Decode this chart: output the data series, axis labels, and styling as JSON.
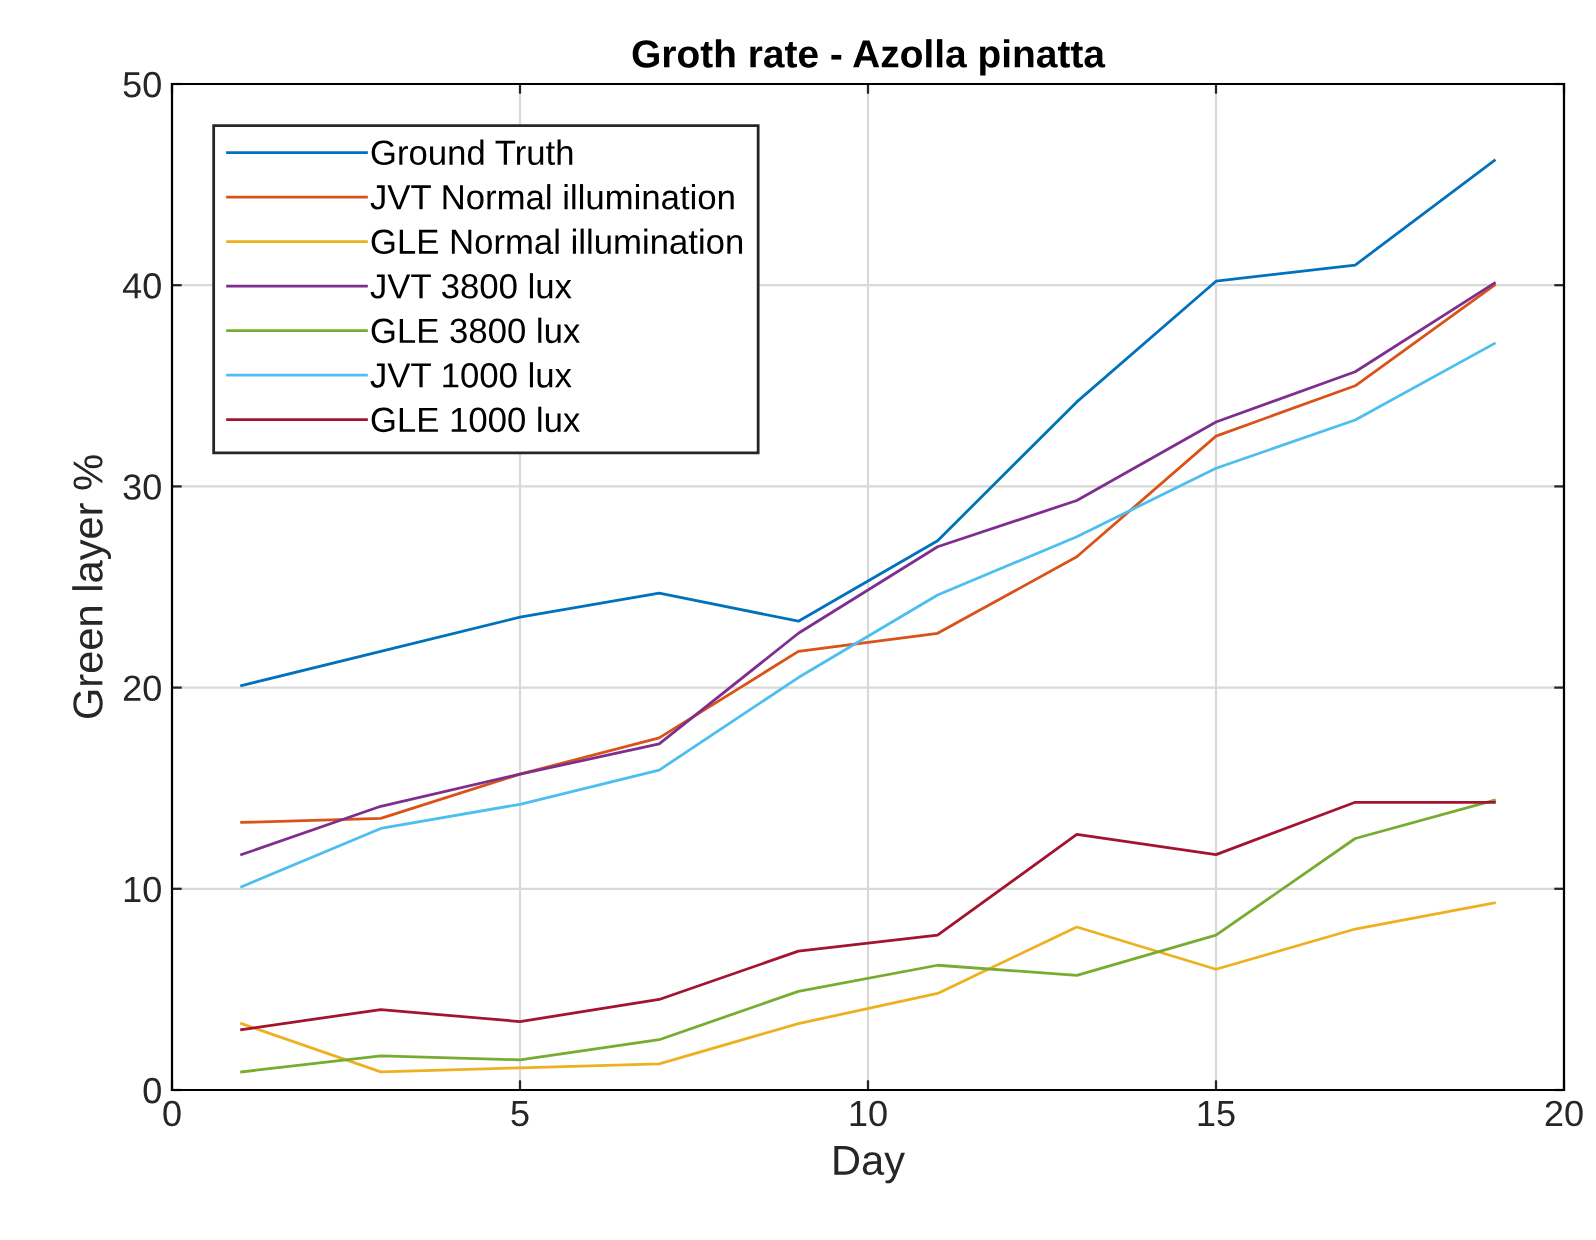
{
  "chart_data": {
    "type": "line",
    "title": "Groth rate - Azolla pinatta",
    "xlabel": "Day",
    "ylabel": "Green layer %",
    "x": [
      1,
      3,
      5,
      7,
      9,
      11,
      13,
      15,
      17,
      19
    ],
    "xlim": [
      0,
      20
    ],
    "xticks": [
      0,
      5,
      10,
      15,
      20
    ],
    "ylim": [
      0,
      50
    ],
    "yticks": [
      0,
      10,
      20,
      30,
      40,
      50
    ],
    "grid": true,
    "legend": "top left",
    "marker": "none",
    "line_style": "solid",
    "series": [
      {
        "name": "Ground Truth",
        "color": "#0072bd",
        "values": [
          20.1,
          21.8,
          23.5,
          24.7,
          23.3,
          27.3,
          34.2,
          40.2,
          41.0,
          46.2
        ]
      },
      {
        "name": "JVT Normal illumination",
        "color": "#d95319",
        "values": [
          13.3,
          13.5,
          15.7,
          17.5,
          21.8,
          22.7,
          26.5,
          32.5,
          35.0,
          40.0
        ]
      },
      {
        "name": "GLE Normal illumination",
        "color": "#edb120",
        "values": [
          3.3,
          0.9,
          1.1,
          1.3,
          3.3,
          4.8,
          8.1,
          6.0,
          8.0,
          9.3
        ]
      },
      {
        "name": "JVT 3800 lux",
        "color": "#7e2f8e",
        "values": [
          11.7,
          14.1,
          15.7,
          17.2,
          22.7,
          27.0,
          29.3,
          33.2,
          35.7,
          40.1
        ]
      },
      {
        "name": "GLE 3800 lux",
        "color": "#77ac30",
        "values": [
          0.9,
          1.7,
          1.5,
          2.5,
          4.9,
          6.2,
          5.7,
          7.7,
          12.5,
          14.4
        ]
      },
      {
        "name": "JVT 1000 lux",
        "color": "#4dbeee",
        "values": [
          10.1,
          13.0,
          14.2,
          15.9,
          20.5,
          24.6,
          27.5,
          30.9,
          33.3,
          37.1
        ]
      },
      {
        "name": "GLE 1000 lux",
        "color": "#a2142f",
        "values": [
          3.0,
          4.0,
          3.4,
          4.5,
          6.9,
          7.7,
          12.7,
          11.7,
          14.3,
          14.3
        ]
      }
    ]
  }
}
